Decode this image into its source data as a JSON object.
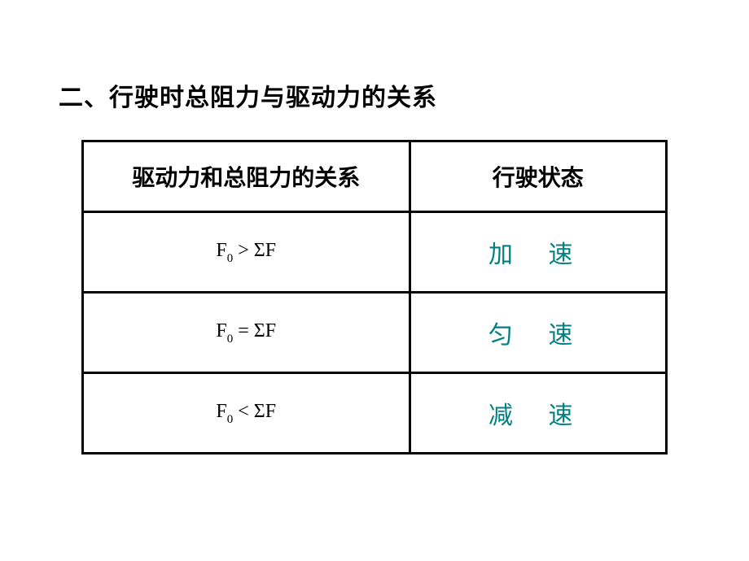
{
  "heading": "二、行驶时总阻力与驱动力的关系",
  "table": {
    "header_col1": "驱动力和总阻力的关系",
    "header_col2": "行驶状态",
    "rows": [
      {
        "formula_f": "F",
        "formula_sub": "0",
        "formula_op": " > ",
        "formula_sigma": "Σ",
        "formula_f2": "F",
        "state": "加 速"
      },
      {
        "formula_f": "F",
        "formula_sub": "0",
        "formula_op": " = ",
        "formula_sigma": "Σ",
        "formula_f2": "F",
        "state": "匀 速"
      },
      {
        "formula_f": "F",
        "formula_sub": "0",
        "formula_op": " < ",
        "formula_sigma": "Σ",
        "formula_f2": "F",
        "state": "减 速"
      }
    ]
  },
  "colors": {
    "text": "#000000",
    "state_text": "#008080",
    "background": "#ffffff",
    "border": "#000000"
  },
  "fonts": {
    "heading_size": 30,
    "header_size": 28,
    "formula_size": 24,
    "state_size": 30
  }
}
